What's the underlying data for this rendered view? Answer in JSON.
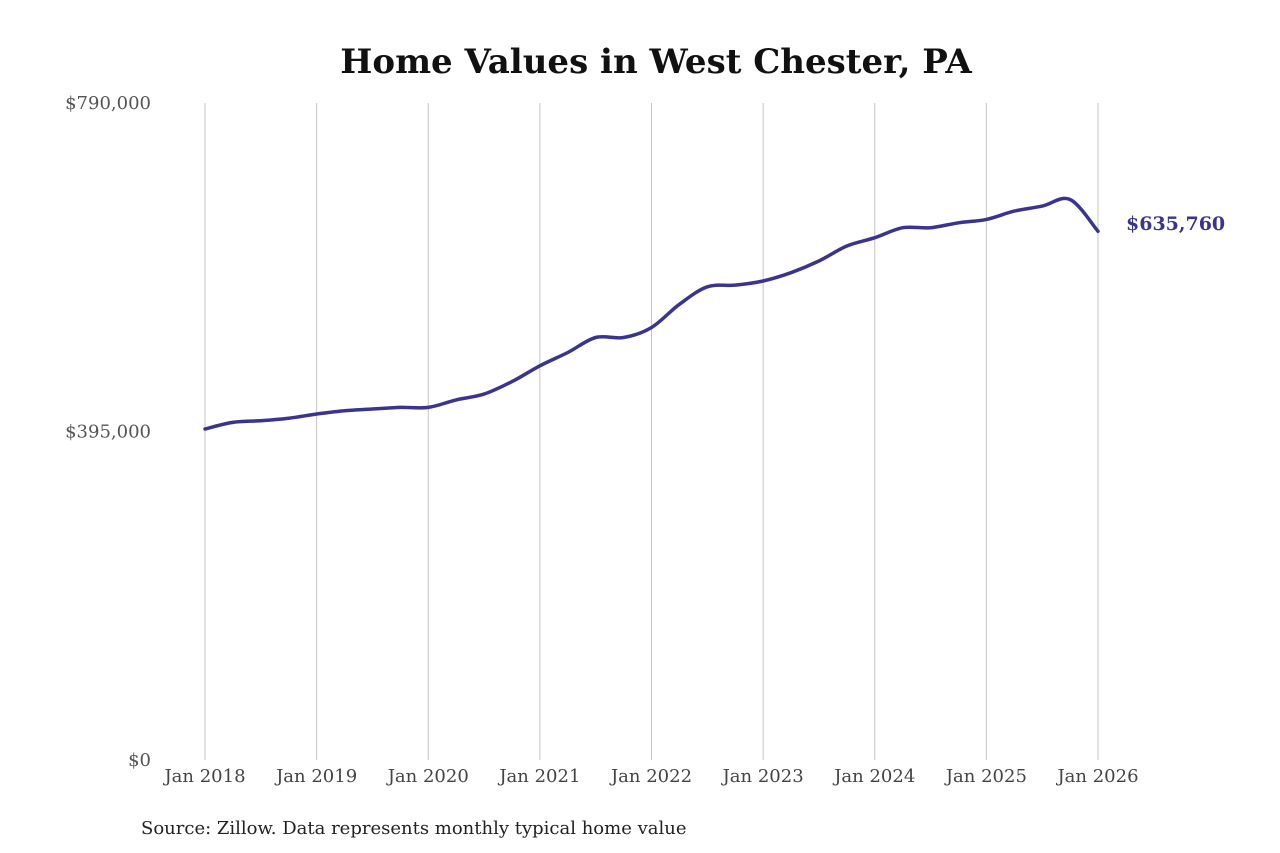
{
  "chart_data": {
    "type": "line",
    "title": "Home Values in West Chester, PA",
    "source": "Source: Zillow. Data represents monthly typical home value",
    "ylim": [
      0,
      790000
    ],
    "yticks": [
      0,
      395000,
      790000
    ],
    "ytick_labels": [
      "$0",
      "$395,000",
      "$790,000"
    ],
    "xlim": [
      2018.0,
      2026.0
    ],
    "xticks": [
      2018,
      2019,
      2020,
      2021,
      2022,
      2023,
      2024,
      2025,
      2026
    ],
    "xtick_labels": [
      "Jan 2018",
      "Jan 2019",
      "Jan 2020",
      "Jan 2021",
      "Jan 2022",
      "Jan 2023",
      "Jan 2024",
      "Jan 2025",
      "Jan 2026"
    ],
    "grid": "vertical",
    "color": "#3a3491",
    "end_label": "$635,760",
    "series": [
      {
        "x": [
          "2018-01",
          "2018-04",
          "2018-07",
          "2018-10",
          "2019-01",
          "2019-04",
          "2019-07",
          "2019-10",
          "2020-01",
          "2020-04",
          "2020-07",
          "2020-10",
          "2021-01",
          "2021-04",
          "2021-07",
          "2021-10",
          "2022-01",
          "2022-04",
          "2022-07",
          "2022-10",
          "2023-01",
          "2023-04",
          "2023-07",
          "2023-10",
          "2024-01",
          "2024-04",
          "2024-07",
          "2024-10",
          "2025-01",
          "2025-04",
          "2025-07",
          "2025-10",
          "2026-01"
        ],
        "values": [
          398000,
          406000,
          408000,
          411000,
          416000,
          420000,
          422000,
          424000,
          424000,
          433000,
          440000,
          455000,
          474000,
          490000,
          508000,
          508000,
          520000,
          548000,
          569000,
          571000,
          576000,
          586000,
          600000,
          618000,
          628000,
          640000,
          640000,
          646000,
          650000,
          660000,
          666000,
          674000,
          635760
        ]
      }
    ]
  }
}
